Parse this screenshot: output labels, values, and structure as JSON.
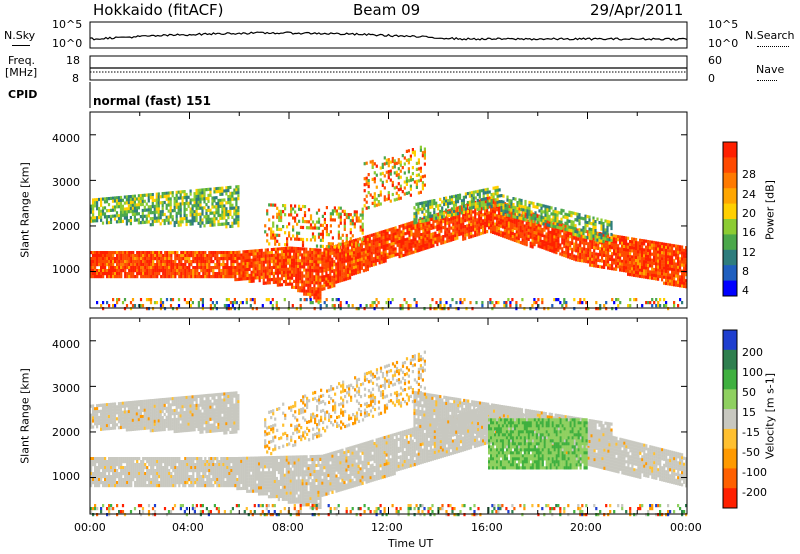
{
  "header": {
    "station": "Hokkaido (fitACF)",
    "beam": "Beam 09",
    "date": "29/Apr/2011"
  },
  "nsky_panel": {
    "left_label": "N.Sky",
    "ticks_left": [
      "10^5",
      "10^0"
    ],
    "ticks_right": [
      "10^5",
      "10^0"
    ],
    "right_label": "N.Search"
  },
  "freq_panel": {
    "left_label_1": "Freq.",
    "left_label_2": "[MHz]",
    "ticks_left": [
      "18",
      "8"
    ],
    "ticks_right": [
      "60",
      "0"
    ],
    "right_label": "Nave"
  },
  "cpid_panel": {
    "left_label": "CPID",
    "text": "normal (fast) 151"
  },
  "chart_data": [
    {
      "type": "heatmap",
      "title": "",
      "xlabel": "",
      "ylabel": "Slant Range [km]",
      "x_range_hours": [
        0,
        24
      ],
      "ylim": [
        200,
        4500
      ],
      "y_ticks": [
        "1000",
        "2000",
        "3000",
        "4000"
      ],
      "colorbar": {
        "label": "Power [dB]",
        "ticks": [
          "4",
          "8",
          "12",
          "16",
          "20",
          "24",
          "28"
        ],
        "colors": [
          "#0000ff",
          "#1f5fbf",
          "#2e7d7d",
          "#4ba84b",
          "#8ccc33",
          "#ffd000",
          "#ffa600",
          "#ff7a00",
          "#ff4a00",
          "#ff2000"
        ]
      },
      "bands": [
        {
          "t": [
            0,
            5.8
          ],
          "r0": [
            900,
            900
          ],
          "r1": [
            1450,
            1450
          ],
          "level": "high"
        },
        {
          "t": [
            5.8,
            8.0
          ],
          "r0": [
            850,
            700
          ],
          "r1": [
            1450,
            1550
          ],
          "level": "high"
        },
        {
          "t": [
            8.0,
            9.3
          ],
          "r0": [
            700,
            300
          ],
          "r1": [
            1550,
            1500
          ],
          "level": "high"
        },
        {
          "t": [
            9.3,
            12.0
          ],
          "r0": [
            600,
            1300
          ],
          "r1": [
            1500,
            1950
          ],
          "level": "high"
        },
        {
          "t": [
            12.0,
            16.0
          ],
          "r0": [
            1300,
            1900
          ],
          "r1": [
            1950,
            2650
          ],
          "level": "high"
        },
        {
          "t": [
            16.0,
            19.5
          ],
          "r0": [
            1900,
            1250
          ],
          "r1": [
            2650,
            1950
          ],
          "level": "high"
        },
        {
          "t": [
            19.5,
            24.0
          ],
          "r0": [
            1250,
            650
          ],
          "r1": [
            1950,
            1550
          ],
          "level": "high"
        },
        {
          "t": [
            0,
            6.0
          ],
          "r0": [
            2100,
            2000
          ],
          "r1": [
            2600,
            2900
          ],
          "level": "mid"
        },
        {
          "t": [
            13.0,
            16.5
          ],
          "r0": [
            2100,
            2500
          ],
          "r1": [
            2500,
            2900
          ],
          "level": "mid"
        },
        {
          "t": [
            16.5,
            21.0
          ],
          "r0": [
            2300,
            1600
          ],
          "r1": [
            2700,
            2100
          ],
          "level": "mid"
        },
        {
          "t": [
            7.0,
            11.0
          ],
          "r0": [
            1600,
            1500
          ],
          "r1": [
            2500,
            2400
          ],
          "level": "mix"
        },
        {
          "t": [
            11.0,
            13.5
          ],
          "r0": [
            2400,
            2800
          ],
          "r1": [
            3400,
            3800
          ],
          "level": "mix"
        },
        {
          "t": [
            0,
            24.0
          ],
          "r0": [
            220,
            220
          ],
          "r1": [
            420,
            420
          ],
          "level": "noise"
        }
      ]
    },
    {
      "type": "heatmap",
      "title": "",
      "xlabel": "Time UT",
      "ylabel": "Slant Range [km]",
      "x_range_hours": [
        0,
        24
      ],
      "ylim": [
        200,
        4500
      ],
      "x_ticks": [
        "00:00",
        "04:00",
        "08:00",
        "12:00",
        "16:00",
        "20:00",
        "00:00"
      ],
      "y_ticks": [
        "1000",
        "2000",
        "3000",
        "4000"
      ],
      "colorbar": {
        "label": "Velocity [m s-1]",
        "ticks": [
          "200",
          "100",
          "50",
          "15",
          "-15",
          "-50",
          "-100",
          "-200"
        ],
        "colors": [
          "#1f3fcf",
          "#2f7f4f",
          "#3fb03f",
          "#8fd060",
          "#c8c8c0",
          "#ffc030",
          "#ff9a00",
          "#ff6000",
          "#ff2000"
        ]
      },
      "bands": [
        {
          "t": [
            0,
            5.8
          ],
          "r0": [
            800,
            800
          ],
          "r1": [
            1450,
            1450
          ],
          "level": "gray"
        },
        {
          "t": [
            5.8,
            9.3
          ],
          "r0": [
            800,
            300
          ],
          "r1": [
            1450,
            1500
          ],
          "level": "gray"
        },
        {
          "t": [
            9.3,
            16.0
          ],
          "r0": [
            600,
            1800
          ],
          "r1": [
            1500,
            2600
          ],
          "level": "gray"
        },
        {
          "t": [
            16.0,
            24.0
          ],
          "r0": [
            1800,
            800
          ],
          "r1": [
            2600,
            1500
          ],
          "level": "gray"
        },
        {
          "t": [
            0,
            6.0
          ],
          "r0": [
            2100,
            2000
          ],
          "r1": [
            2600,
            2900
          ],
          "level": "gray"
        },
        {
          "t": [
            13.0,
            21.0
          ],
          "r0": [
            2100,
            1700
          ],
          "r1": [
            2900,
            2200
          ],
          "level": "gray"
        },
        {
          "t": [
            16.0,
            20.0
          ],
          "r0": [
            1200,
            1200
          ],
          "r1": [
            2300,
            2300
          ],
          "level": "green"
        },
        {
          "t": [
            7.0,
            13.5
          ],
          "r0": [
            1500,
            2800
          ],
          "r1": [
            2500,
            3800
          ],
          "level": "mix"
        },
        {
          "t": [
            0,
            24.0
          ],
          "r0": [
            220,
            220
          ],
          "r1": [
            420,
            420
          ],
          "level": "noise"
        }
      ]
    }
  ]
}
